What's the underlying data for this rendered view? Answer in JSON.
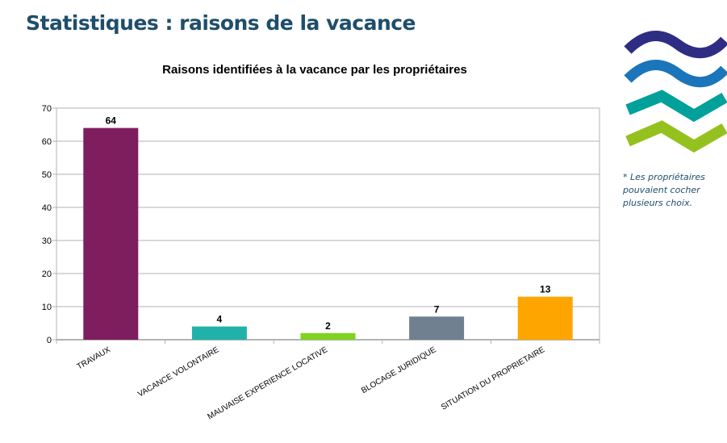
{
  "page": {
    "title": "Statistiques : raisons de la vacance",
    "note": "* Les propriétaires pouvaient cocher plusieurs choix.",
    "logo_colors": [
      "#2e2d83",
      "#1b75bb",
      "#00a19a",
      "#95c11f"
    ]
  },
  "chart_data": {
    "type": "bar",
    "title": "Raisons identifiées à la vacance par les propriétaires",
    "categories": [
      "TRAVAUX",
      "VACANCE VOLONTAIRE",
      "MAUVAISE EXPERIENCE LOCATIVE",
      "BLOCAGE JURIDIQUE",
      "SITUATION DU PROPRIETAIRE"
    ],
    "values": [
      64,
      4,
      2,
      7,
      13
    ],
    "colors": [
      "#7e1e5e",
      "#20b2aa",
      "#7ed321",
      "#708090",
      "#ffa500"
    ],
    "ylim": [
      0,
      70
    ],
    "yticks": [
      0,
      10,
      20,
      30,
      40,
      50,
      60,
      70
    ],
    "grid": true,
    "legend": "none",
    "xlabel": "",
    "ylabel": ""
  }
}
